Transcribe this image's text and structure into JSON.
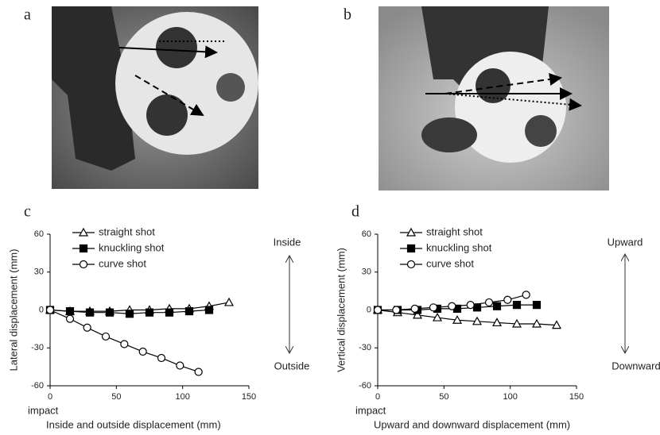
{
  "photos": [
    {
      "label": "a"
    },
    {
      "label": "b"
    }
  ],
  "chart_data": [
    {
      "type": "line",
      "panel": "c",
      "ylabel": "Lateral displacement (mm)",
      "xlabel": "Inside and outside displacement (mm)",
      "annotations": [
        "Inside",
        "Outside",
        "impact"
      ],
      "xlim": [
        0,
        150
      ],
      "xticks": [
        0,
        50,
        100,
        150
      ],
      "ylim": [
        -60,
        60
      ],
      "yticks": [
        -60,
        -30,
        0,
        30,
        60
      ],
      "series": [
        {
          "name": "straight shot",
          "color": "#000000",
          "marker": "triangle",
          "x": [
            0,
            15,
            30,
            45,
            60,
            75,
            90,
            105,
            120,
            135
          ],
          "values": [
            0,
            -1,
            -1,
            -1,
            0,
            0,
            1,
            1,
            3,
            6
          ]
        },
        {
          "name": "knuckling shot",
          "color": "#000000",
          "marker": "square",
          "x": [
            0,
            15,
            30,
            45,
            60,
            75,
            90,
            105,
            120
          ],
          "values": [
            0,
            -1,
            -2,
            -2,
            -3,
            -2,
            -2,
            -1,
            0
          ]
        },
        {
          "name": "curve shot",
          "color": "#000000",
          "marker": "circle",
          "x": [
            0,
            15,
            28,
            42,
            56,
            70,
            84,
            98,
            112
          ],
          "values": [
            0,
            -7,
            -14,
            -21,
            -27,
            -33,
            -38,
            -44,
            -49
          ]
        }
      ]
    },
    {
      "type": "line",
      "panel": "d",
      "ylabel": "Vertical displacement (mm)",
      "xlabel": "Upward and downward displacement (mm)",
      "annotations": [
        "Upward",
        "Downward",
        "impact"
      ],
      "xlim": [
        0,
        150
      ],
      "xticks": [
        0,
        50,
        100,
        150
      ],
      "ylim": [
        -60,
        60
      ],
      "yticks": [
        -60,
        -30,
        0,
        30,
        60
      ],
      "series": [
        {
          "name": "straight shot",
          "color": "#000000",
          "marker": "triangle",
          "x": [
            0,
            15,
            30,
            45,
            60,
            75,
            90,
            105,
            120,
            135
          ],
          "values": [
            0,
            -2,
            -4,
            -6,
            -8,
            -9,
            -10,
            -11,
            -11,
            -12
          ]
        },
        {
          "name": "knuckling shot",
          "color": "#000000",
          "marker": "square",
          "x": [
            0,
            15,
            30,
            45,
            60,
            75,
            90,
            105,
            120
          ],
          "values": [
            0,
            0,
            0,
            1,
            1,
            2,
            3,
            4,
            4
          ]
        },
        {
          "name": "curve shot",
          "color": "#000000",
          "marker": "circle",
          "x": [
            0,
            14,
            28,
            42,
            56,
            70,
            84,
            98,
            112
          ],
          "values": [
            0,
            0,
            1,
            2,
            3,
            4,
            6,
            8,
            12
          ]
        }
      ]
    }
  ]
}
